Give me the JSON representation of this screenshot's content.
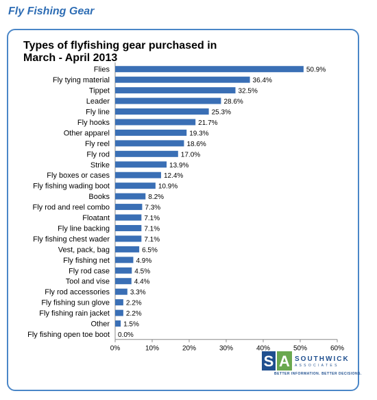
{
  "header": {
    "title": "Fly Fishing Gear"
  },
  "logo": {
    "name": "SOUTHWICK",
    "sub": "A S S O C I A T E S",
    "tagline": "BETTER INFORMATION. BETTER DECISIONS."
  },
  "chart_data": {
    "type": "bar",
    "orientation": "horizontal",
    "title": "Types of flyfishing gear purchased in March - April 2013",
    "categories": [
      "Flies",
      "Fly tying material",
      "Tippet",
      "Leader",
      "Fly line",
      "Fly hooks",
      "Other apparel",
      "Fly reel",
      "Fly rod",
      "Strike",
      "Fly boxes or cases",
      "Fly fishing wading boot",
      "Books",
      "Fly rod and reel combo",
      "Floatant",
      "Fly line backing",
      "Fly fishing chest wader",
      "Vest, pack, bag",
      "Fly fishing net",
      "Fly rod case",
      "Tool and vise",
      "Fly rod accessories",
      "Fly fishing sun glove",
      "Fly fishing rain jacket",
      "Other",
      "Fly fishing open toe boot"
    ],
    "values": [
      50.9,
      36.4,
      32.5,
      28.6,
      25.3,
      21.7,
      19.3,
      18.6,
      17.0,
      13.9,
      12.4,
      10.9,
      8.2,
      7.3,
      7.1,
      7.1,
      7.1,
      6.5,
      4.9,
      4.5,
      4.4,
      3.3,
      2.2,
      2.2,
      1.5,
      0.0
    ],
    "value_labels": [
      "50.9%",
      "36.4%",
      "32.5%",
      "28.6%",
      "25.3%",
      "21.7%",
      "19.3%",
      "18.6%",
      "17.0%",
      "13.9%",
      "12.4%",
      "10.9%",
      "8.2%",
      "7.3%",
      "7.1%",
      "7.1%",
      "7.1%",
      "6.5%",
      "4.9%",
      "4.5%",
      "4.4%",
      "3.3%",
      "2.2%",
      "2.2%",
      "1.5%",
      "0.0%"
    ],
    "xlim": [
      0,
      60
    ],
    "xticks": [
      "0%",
      "10%",
      "20%",
      "30%",
      "40%",
      "50%",
      "60%"
    ],
    "grid": false,
    "bar_color": "#3a6fb5"
  }
}
